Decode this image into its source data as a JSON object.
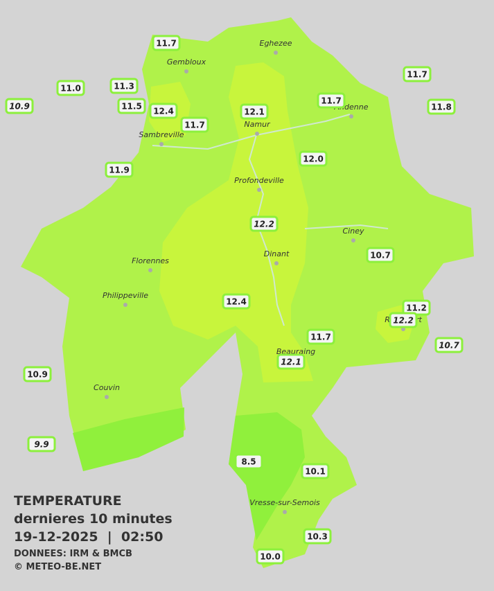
{
  "legend": {
    "title": "TEMPERATURE",
    "subtitle": "dernieres 10 minutes",
    "datetime": "19-12-2025  |  02:50",
    "source": "DONNEES: IRM & BMCB",
    "credit": "© METEO-BE.NET"
  },
  "cities": [
    "Eghezee",
    "Gembloux",
    "Andenne",
    "Namur",
    "Sambreville",
    "Profondeville",
    "Ciney",
    "Dinant",
    "Florennes",
    "Philippeville",
    "Beauraing",
    "Rochefort",
    "Couvin",
    "Vresse-sur-Semois"
  ],
  "stations": [
    {
      "label": "11.7"
    },
    {
      "label": "11.0"
    },
    {
      "label": "11.3"
    },
    {
      "label": "10.9",
      "italic": true
    },
    {
      "label": "11.5"
    },
    {
      "label": "12.4"
    },
    {
      "label": "11.7"
    },
    {
      "label": "12.1"
    },
    {
      "label": "11.7"
    },
    {
      "label": "11.7"
    },
    {
      "label": "11.8"
    },
    {
      "label": "12.0"
    },
    {
      "label": "11.9"
    },
    {
      "label": "12.2",
      "italic": true
    },
    {
      "label": "10.7"
    },
    {
      "label": "12.4"
    },
    {
      "label": "11.2"
    },
    {
      "label": "12.2",
      "italic": true
    },
    {
      "label": "11.7"
    },
    {
      "label": "10.7",
      "italic": true
    },
    {
      "label": "12.1",
      "italic": true
    },
    {
      "label": "10.9"
    },
    {
      "label": "9.9",
      "italic": true
    },
    {
      "label": "8.5"
    },
    {
      "label": "10.1"
    },
    {
      "label": "10.3"
    },
    {
      "label": "10.0"
    }
  ]
}
